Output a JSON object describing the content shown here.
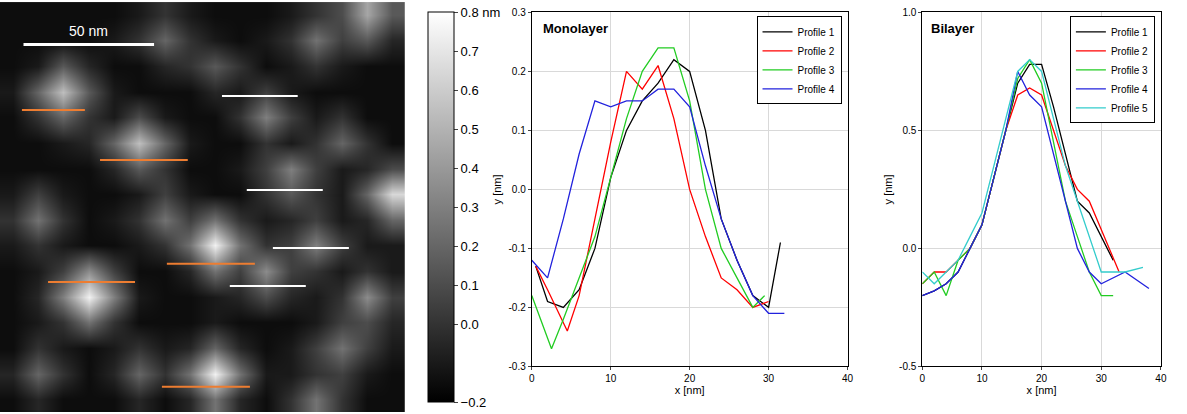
{
  "chart_data": [
    {
      "type": "heatmap",
      "xlim": [
        0,
        155
      ],
      "ylim": [
        0,
        155
      ],
      "tick_labels": false,
      "x": [
        4.8,
        14.5,
        24.2,
        33.9,
        43.6,
        53.3,
        63.0,
        72.7,
        82.3,
        92.0,
        101.7,
        111.4,
        121.1,
        130.8,
        140.5,
        150.2
      ],
      "y": [
        150.2,
        140.5,
        130.8,
        121.1,
        111.4,
        101.7,
        92.0,
        82.3,
        72.7,
        63.0,
        53.3,
        43.6,
        33.9,
        24.2,
        14.5,
        4.8
      ],
      "z": [
        [
          -0.15,
          -0.15,
          -0.15,
          -0.15,
          -0.15,
          -0.1,
          0.0,
          -0.1,
          -0.15,
          -0.15,
          -0.15,
          -0.1,
          0.0,
          0.1,
          0.45,
          0.15
        ],
        [
          -0.15,
          -0.15,
          -0.15,
          -0.15,
          -0.1,
          0.0,
          0.2,
          0.0,
          -0.1,
          -0.15,
          -0.1,
          0.0,
          0.25,
          0.05,
          0.15,
          -0.05
        ],
        [
          -0.15,
          -0.1,
          0.15,
          -0.05,
          -0.15,
          -0.15,
          -0.05,
          0.0,
          0.15,
          0.0,
          -0.15,
          -0.1,
          0.0,
          -0.1,
          -0.15,
          -0.15
        ],
        [
          -0.1,
          0.2,
          0.55,
          0.15,
          -0.1,
          -0.15,
          -0.15,
          -0.15,
          -0.05,
          -0.1,
          0.05,
          -0.1,
          -0.15,
          -0.15,
          -0.15,
          -0.15
        ],
        [
          -0.15,
          0.0,
          0.2,
          0.0,
          -0.1,
          0.1,
          -0.1,
          -0.15,
          -0.15,
          0.0,
          0.3,
          0.05,
          -0.1,
          0.0,
          -0.15,
          -0.15
        ],
        [
          -0.15,
          -0.15,
          -0.1,
          -0.05,
          0.2,
          0.55,
          0.2,
          -0.1,
          -0.15,
          -0.15,
          0.0,
          -0.1,
          0.0,
          0.2,
          0.0,
          -0.15
        ],
        [
          -0.15,
          -0.15,
          -0.15,
          -0.15,
          -0.05,
          0.15,
          0.0,
          -0.15,
          -0.15,
          -0.1,
          0.05,
          0.3,
          0.05,
          -0.1,
          -0.05,
          0.1
        ],
        [
          -0.1,
          0.05,
          -0.1,
          -0.15,
          -0.15,
          -0.1,
          0.05,
          -0.1,
          -0.15,
          -0.15,
          0.0,
          0.15,
          0.0,
          -0.1,
          0.2,
          0.65
        ],
        [
          0.0,
          0.25,
          0.0,
          -0.15,
          -0.1,
          0.0,
          0.25,
          0.05,
          0.25,
          0.0,
          -0.1,
          -0.05,
          0.05,
          -0.1,
          -0.05,
          0.2
        ],
        [
          -0.1,
          0.0,
          -0.1,
          -0.15,
          -0.15,
          -0.1,
          0.0,
          0.25,
          0.75,
          0.25,
          0.0,
          0.05,
          0.3,
          0.05,
          -0.1,
          -0.1
        ],
        [
          -0.15,
          -0.1,
          0.05,
          0.35,
          0.05,
          -0.15,
          -0.15,
          -0.05,
          0.25,
          0.05,
          0.35,
          0.05,
          0.0,
          -0.1,
          0.0,
          -0.1
        ],
        [
          -0.15,
          -0.05,
          0.3,
          0.75,
          0.3,
          -0.1,
          -0.15,
          -0.15,
          -0.1,
          -0.05,
          0.1,
          -0.05,
          -0.1,
          0.0,
          0.35,
          0.05
        ],
        [
          -0.15,
          -0.1,
          0.0,
          0.25,
          0.0,
          -0.15,
          -0.15,
          -0.15,
          -0.1,
          -0.15,
          -0.15,
          -0.15,
          -0.1,
          0.05,
          0.1,
          -0.05
        ],
        [
          -0.15,
          0.0,
          -0.1,
          -0.15,
          -0.1,
          0.0,
          -0.1,
          -0.05,
          0.2,
          -0.05,
          -0.15,
          -0.1,
          0.05,
          0.25,
          0.05,
          -0.1
        ],
        [
          -0.05,
          0.2,
          0.0,
          -0.15,
          -0.05,
          0.2,
          0.0,
          0.25,
          0.75,
          0.25,
          -0.1,
          -0.1,
          0.0,
          0.05,
          -0.1,
          -0.15
        ],
        [
          -0.15,
          -0.05,
          -0.15,
          -0.15,
          -0.15,
          -0.05,
          -0.15,
          -0.05,
          0.25,
          -0.05,
          -0.15,
          0.0,
          0.25,
          0.0,
          -0.15,
          -0.15
        ]
      ],
      "colorbar": {
        "range": [
          -0.2,
          0.8
        ],
        "ticks": [
          {
            "value": 0.8,
            "label": "0.8 nm"
          },
          0.7,
          0.6,
          0.5,
          0.4,
          0.3,
          0.2,
          0.1,
          {
            "value": 0,
            "label": "0.0"
          },
          {
            "value": -0.2,
            "label": "−0.2"
          }
        ]
      },
      "scale_bar": {
        "label": "50 nm",
        "x": [
          9,
          59
        ],
        "y": 139
      },
      "profile_lines": [
        {
          "color": "#ed7d31",
          "segments": [
            [
              8.4,
              32.5,
              114.2
            ],
            [
              38.3,
              71.9,
              95.3
            ],
            [
              63.9,
              97.6,
              56.0
            ],
            [
              18.4,
              51.7,
              49.1
            ],
            [
              62.0,
              95.7,
              9.5
            ]
          ]
        },
        {
          "color": "#ffffff",
          "segments": [
            [
              85.0,
              114.0,
              119.5
            ],
            [
              94.5,
              123.6,
              83.9
            ],
            [
              104.5,
              133.6,
              62.0
            ],
            [
              88.0,
              117.1,
              47.6
            ]
          ]
        }
      ]
    },
    {
      "type": "line",
      "title": "Monolayer",
      "xlabel": "x [nm]",
      "ylabel": "y [nm]",
      "xlim": [
        0,
        40
      ],
      "xticks": [
        0,
        10,
        20,
        30,
        40
      ],
      "ylim": [
        -0.3,
        0.3
      ],
      "yticks": [
        -0.3,
        -0.2,
        -0.1,
        {
          "value": 0,
          "label": "0.0"
        },
        0.1,
        0.2,
        0.3
      ],
      "grid": true,
      "legend": "upper right",
      "series": [
        {
          "name": "Profile 1",
          "color": "#000000",
          "x": [
            0.5,
            2,
            4,
            6,
            8,
            10,
            12,
            14,
            16,
            18,
            20,
            22,
            24,
            26,
            28,
            30,
            31.5
          ],
          "values": [
            -0.13,
            -0.19,
            -0.2,
            -0.17,
            -0.1,
            0.02,
            0.1,
            0.15,
            0.18,
            0.22,
            0.2,
            0.1,
            -0.05,
            -0.12,
            -0.18,
            -0.2,
            -0.09
          ]
        },
        {
          "name": "Profile 2",
          "color": "#ff0000",
          "x": [
            0.5,
            2,
            4.5,
            6,
            8,
            10,
            12,
            14,
            16,
            18,
            20,
            22,
            24,
            26,
            28,
            30
          ],
          "values": [
            -0.13,
            -0.17,
            -0.24,
            -0.18,
            -0.05,
            0.08,
            0.2,
            0.17,
            0.21,
            0.12,
            0.0,
            -0.08,
            -0.15,
            -0.17,
            -0.2,
            -0.19
          ]
        },
        {
          "name": "Profile 3",
          "color": "#22cc22",
          "x": [
            0,
            2.5,
            4,
            6,
            8,
            10,
            12,
            14,
            16,
            18,
            20,
            22,
            24,
            26,
            28,
            29.5
          ],
          "values": [
            -0.18,
            -0.27,
            -0.22,
            -0.15,
            -0.08,
            0.02,
            0.12,
            0.2,
            0.24,
            0.24,
            0.15,
            0.0,
            -0.1,
            -0.15,
            -0.2,
            -0.18
          ]
        },
        {
          "name": "Profile 4",
          "color": "#2222dd",
          "x": [
            0,
            2,
            4,
            6,
            8,
            10,
            12,
            14,
            16,
            18,
            20,
            22,
            24,
            26,
            28,
            30,
            32
          ],
          "values": [
            -0.12,
            -0.15,
            -0.05,
            0.06,
            0.15,
            0.14,
            0.15,
            0.15,
            0.17,
            0.17,
            0.14,
            0.04,
            -0.05,
            -0.12,
            -0.18,
            -0.21,
            -0.21
          ]
        }
      ]
    },
    {
      "type": "line",
      "title": "Bilayer",
      "xlabel": "x [nm]",
      "ylabel": "y [nm]",
      "xlim": [
        0,
        40
      ],
      "xticks": [
        0,
        10,
        20,
        30,
        40
      ],
      "ylim": [
        -0.5,
        1.0
      ],
      "yticks": [
        -0.5,
        {
          "value": 0,
          "label": "0.0"
        },
        0.5,
        {
          "value": 1,
          "label": "1.0"
        }
      ],
      "grid": true,
      "legend": "upper right",
      "series": [
        {
          "name": "Profile 1",
          "color": "#000000",
          "x": [
            0,
            2,
            4,
            6,
            8,
            10,
            12,
            14,
            16,
            18,
            20,
            22,
            24,
            26,
            28,
            30,
            32
          ],
          "values": [
            -0.2,
            -0.18,
            -0.15,
            -0.1,
            0.0,
            0.1,
            0.3,
            0.5,
            0.7,
            0.78,
            0.78,
            0.6,
            0.4,
            0.2,
            0.15,
            0.05,
            -0.05
          ]
        },
        {
          "name": "Profile 2",
          "color": "#ff0000",
          "x": [
            0,
            2,
            4,
            6,
            8,
            10,
            12,
            14,
            16,
            18,
            20,
            22,
            24,
            26,
            28,
            30,
            33
          ],
          "values": [
            -0.15,
            -0.1,
            -0.1,
            -0.05,
            0.0,
            0.1,
            0.3,
            0.5,
            0.65,
            0.68,
            0.65,
            0.5,
            0.35,
            0.25,
            0.2,
            0.08,
            -0.1
          ]
        },
        {
          "name": "Profile 3",
          "color": "#22cc22",
          "x": [
            0,
            2,
            4,
            6,
            8,
            10,
            12,
            14,
            16,
            18,
            20,
            22,
            24,
            26,
            28,
            30,
            32
          ],
          "values": [
            -0.15,
            -0.1,
            -0.2,
            -0.05,
            0.0,
            0.1,
            0.3,
            0.5,
            0.72,
            0.8,
            0.7,
            0.45,
            0.2,
            0.05,
            -0.1,
            -0.2,
            -0.2
          ]
        },
        {
          "name": "Profile 4",
          "color": "#2222dd",
          "x": [
            0,
            2,
            4,
            6,
            8,
            10,
            12,
            14,
            16,
            18,
            20,
            22,
            24,
            26,
            28,
            30,
            34,
            38
          ],
          "values": [
            -0.2,
            -0.18,
            -0.15,
            -0.1,
            0.0,
            0.1,
            0.3,
            0.5,
            0.75,
            0.65,
            0.6,
            0.4,
            0.2,
            0.0,
            -0.1,
            -0.15,
            -0.1,
            -0.17
          ]
        },
        {
          "name": "Profile 5",
          "color": "#33cccc",
          "x": [
            0,
            2,
            4,
            6,
            8,
            10,
            12,
            14,
            16,
            18,
            20,
            22,
            24,
            26,
            28,
            30,
            34,
            37
          ],
          "values": [
            -0.1,
            -0.15,
            -0.1,
            -0.05,
            0.05,
            0.15,
            0.35,
            0.55,
            0.75,
            0.8,
            0.75,
            0.55,
            0.35,
            0.2,
            0.05,
            -0.1,
            -0.1,
            -0.08
          ]
        }
      ]
    }
  ]
}
